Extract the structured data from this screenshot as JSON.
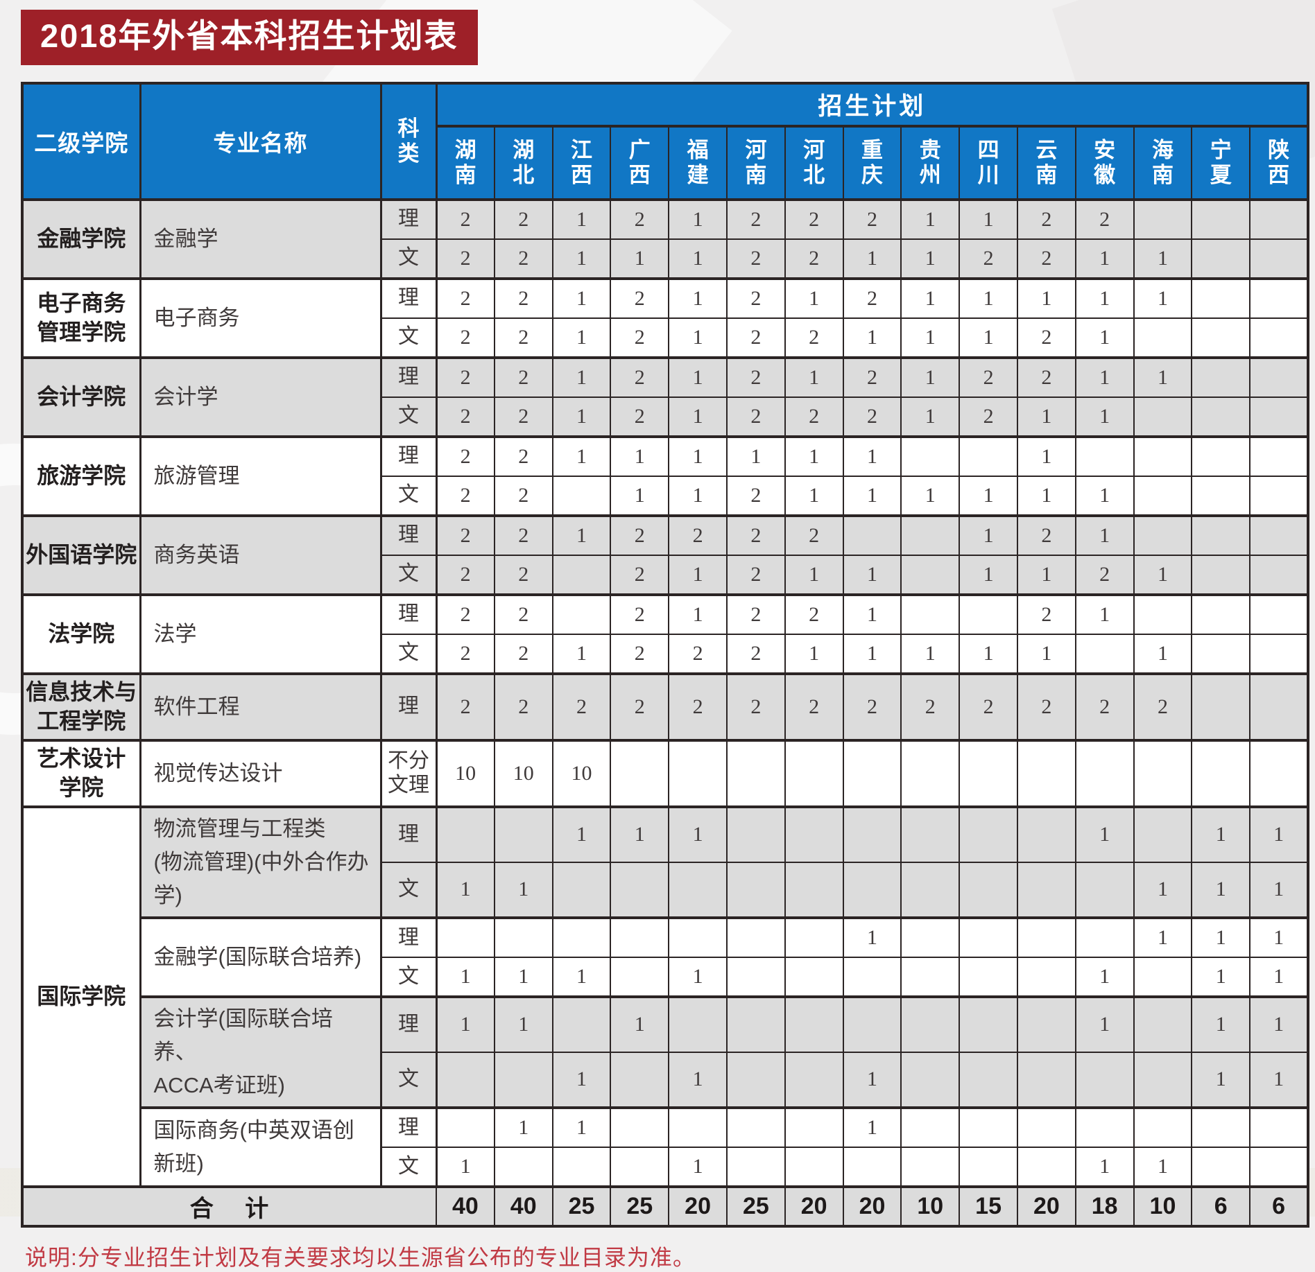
{
  "title": "2018年外省本科招生计划表",
  "footer_note": "说明:分专业招生计划及有关要求均以生源省公布的专业目录为准。",
  "colors": {
    "banner_bg": "#9e2028",
    "header_bg": "#1177c5",
    "row_shade": "#dcdcdc",
    "border": "#2b2424",
    "note_text": "#c13a44"
  },
  "table": {
    "headers": {
      "college": "二级学院",
      "major": "专业名称",
      "subject": "科类",
      "plan": "招生计划"
    },
    "provinces": [
      "湖南",
      "湖北",
      "江西",
      "广西",
      "福建",
      "河南",
      "河北",
      "重庆",
      "贵州",
      "四川",
      "云南",
      "安徽",
      "海南",
      "宁夏",
      "陕西"
    ],
    "groups": [
      {
        "college": "金融学院",
        "shade": true,
        "majors": [
          {
            "name": "金融学",
            "shade": true,
            "rows": [
              {
                "subject": "理",
                "values": [
                  "2",
                  "2",
                  "1",
                  "2",
                  "1",
                  "2",
                  "2",
                  "2",
                  "1",
                  "1",
                  "2",
                  "2",
                  "",
                  "",
                  ""
                ]
              },
              {
                "subject": "文",
                "values": [
                  "2",
                  "2",
                  "1",
                  "1",
                  "1",
                  "2",
                  "2",
                  "1",
                  "1",
                  "2",
                  "2",
                  "1",
                  "1",
                  "",
                  ""
                ]
              }
            ]
          }
        ]
      },
      {
        "college": "电子商务\n管理学院",
        "shade": false,
        "majors": [
          {
            "name": "电子商务",
            "shade": false,
            "rows": [
              {
                "subject": "理",
                "values": [
                  "2",
                  "2",
                  "1",
                  "2",
                  "1",
                  "2",
                  "1",
                  "2",
                  "1",
                  "1",
                  "1",
                  "1",
                  "1",
                  "",
                  ""
                ]
              },
              {
                "subject": "文",
                "values": [
                  "2",
                  "2",
                  "1",
                  "2",
                  "1",
                  "2",
                  "2",
                  "1",
                  "1",
                  "1",
                  "2",
                  "1",
                  "",
                  "",
                  ""
                ]
              }
            ]
          }
        ]
      },
      {
        "college": "会计学院",
        "shade": true,
        "majors": [
          {
            "name": "会计学",
            "shade": true,
            "rows": [
              {
                "subject": "理",
                "values": [
                  "2",
                  "2",
                  "1",
                  "2",
                  "1",
                  "2",
                  "1",
                  "2",
                  "1",
                  "2",
                  "2",
                  "1",
                  "1",
                  "",
                  ""
                ]
              },
              {
                "subject": "文",
                "values": [
                  "2",
                  "2",
                  "1",
                  "2",
                  "1",
                  "2",
                  "2",
                  "2",
                  "1",
                  "2",
                  "1",
                  "1",
                  "",
                  "",
                  ""
                ]
              }
            ]
          }
        ]
      },
      {
        "college": "旅游学院",
        "shade": false,
        "majors": [
          {
            "name": "旅游管理",
            "shade": false,
            "rows": [
              {
                "subject": "理",
                "values": [
                  "2",
                  "2",
                  "1",
                  "1",
                  "1",
                  "1",
                  "1",
                  "1",
                  "",
                  "",
                  "1",
                  "",
                  "",
                  "",
                  ""
                ]
              },
              {
                "subject": "文",
                "values": [
                  "2",
                  "2",
                  "",
                  "1",
                  "1",
                  "2",
                  "1",
                  "1",
                  "1",
                  "1",
                  "1",
                  "1",
                  "",
                  "",
                  ""
                ]
              }
            ]
          }
        ]
      },
      {
        "college": "外国语学院",
        "shade": true,
        "majors": [
          {
            "name": "商务英语",
            "shade": true,
            "rows": [
              {
                "subject": "理",
                "values": [
                  "2",
                  "2",
                  "1",
                  "2",
                  "2",
                  "2",
                  "2",
                  "",
                  "",
                  "1",
                  "2",
                  "1",
                  "",
                  "",
                  ""
                ]
              },
              {
                "subject": "文",
                "values": [
                  "2",
                  "2",
                  "",
                  "2",
                  "1",
                  "2",
                  "1",
                  "1",
                  "",
                  "1",
                  "1",
                  "2",
                  "1",
                  "",
                  ""
                ]
              }
            ]
          }
        ]
      },
      {
        "college": "法学院",
        "shade": false,
        "majors": [
          {
            "name": "法学",
            "shade": false,
            "rows": [
              {
                "subject": "理",
                "values": [
                  "2",
                  "2",
                  "",
                  "2",
                  "1",
                  "2",
                  "2",
                  "1",
                  "",
                  "",
                  "2",
                  "1",
                  "",
                  "",
                  ""
                ]
              },
              {
                "subject": "文",
                "values": [
                  "2",
                  "2",
                  "1",
                  "2",
                  "2",
                  "2",
                  "1",
                  "1",
                  "1",
                  "1",
                  "1",
                  "",
                  "1",
                  "",
                  ""
                ]
              }
            ]
          }
        ]
      },
      {
        "college": "信息技术与\n工程学院",
        "shade": true,
        "majors": [
          {
            "name": "软件工程",
            "shade": true,
            "rows": [
              {
                "subject": "理",
                "values": [
                  "2",
                  "2",
                  "2",
                  "2",
                  "2",
                  "2",
                  "2",
                  "2",
                  "2",
                  "2",
                  "2",
                  "2",
                  "2",
                  "",
                  ""
                ]
              }
            ]
          }
        ]
      },
      {
        "college": "艺术设计\n学院",
        "shade": false,
        "majors": [
          {
            "name": "视觉传达设计",
            "shade": false,
            "rows": [
              {
                "subject": "不分文理",
                "values": [
                  "10",
                  "10",
                  "10",
                  "",
                  "",
                  "",
                  "",
                  "",
                  "",
                  "",
                  "",
                  "",
                  "",
                  "",
                  ""
                ]
              }
            ]
          }
        ]
      },
      {
        "college": "国际学院",
        "shade": false,
        "majors": [
          {
            "name": "物流管理与工程类\n(物流管理)(中外合作办学)",
            "shade": true,
            "rows": [
              {
                "subject": "理",
                "values": [
                  "",
                  "",
                  "1",
                  "1",
                  "1",
                  "",
                  "",
                  "",
                  "",
                  "",
                  "",
                  "1",
                  "",
                  "1",
                  "1"
                ]
              },
              {
                "subject": "文",
                "values": [
                  "1",
                  "1",
                  "",
                  "",
                  "",
                  "",
                  "",
                  "",
                  "",
                  "",
                  "",
                  "",
                  "1",
                  "1",
                  "1"
                ]
              }
            ]
          },
          {
            "name": "金融学(国际联合培养)",
            "shade": false,
            "rows": [
              {
                "subject": "理",
                "values": [
                  "",
                  "",
                  "",
                  "",
                  "",
                  "",
                  "",
                  "1",
                  "",
                  "",
                  "",
                  "",
                  "1",
                  "1",
                  "1"
                ]
              },
              {
                "subject": "文",
                "values": [
                  "1",
                  "1",
                  "1",
                  "",
                  "1",
                  "",
                  "",
                  "",
                  "",
                  "",
                  "",
                  "1",
                  "",
                  "1",
                  "1"
                ]
              }
            ]
          },
          {
            "name": "会计学(国际联合培养、\nACCA考证班)",
            "shade": true,
            "rows": [
              {
                "subject": "理",
                "values": [
                  "1",
                  "1",
                  "",
                  "1",
                  "",
                  "",
                  "",
                  "",
                  "",
                  "",
                  "",
                  "1",
                  "",
                  "1",
                  "1"
                ]
              },
              {
                "subject": "文",
                "values": [
                  "",
                  "",
                  "1",
                  "",
                  "1",
                  "",
                  "",
                  "1",
                  "",
                  "",
                  "",
                  "",
                  "",
                  "1",
                  "1"
                ]
              }
            ]
          },
          {
            "name": "国际商务(中英双语创新班)",
            "shade": false,
            "rows": [
              {
                "subject": "理",
                "values": [
                  "",
                  "1",
                  "1",
                  "",
                  "",
                  "",
                  "",
                  "1",
                  "",
                  "",
                  "",
                  "",
                  "",
                  "",
                  ""
                ]
              },
              {
                "subject": "文",
                "values": [
                  "1",
                  "",
                  "",
                  "",
                  "1",
                  "",
                  "",
                  "",
                  "",
                  "",
                  "",
                  "1",
                  "1",
                  "",
                  ""
                ]
              }
            ]
          }
        ]
      }
    ],
    "total": {
      "label": "合 计",
      "values": [
        "40",
        "40",
        "25",
        "25",
        "20",
        "25",
        "20",
        "20",
        "10",
        "15",
        "20",
        "18",
        "10",
        "6",
        "6"
      ]
    }
  }
}
